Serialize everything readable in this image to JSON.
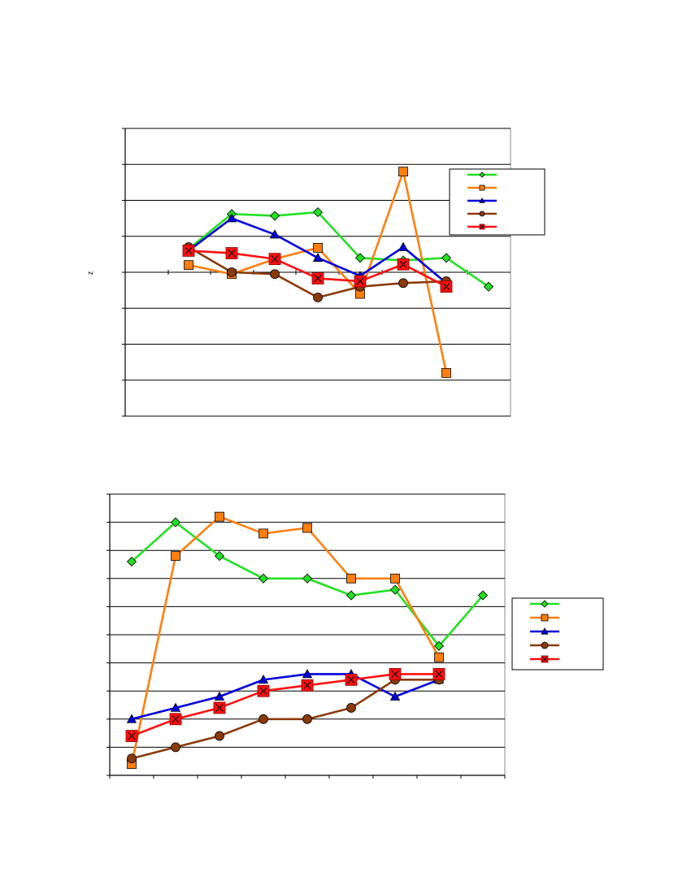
{
  "chart_data": [
    {
      "type": "line",
      "ylabel": "z",
      "ylim": [
        -4,
        4
      ],
      "x": [
        1,
        2,
        3,
        4,
        5,
        6,
        7,
        8,
        9
      ],
      "grid": true,
      "legend_placement": "top-right",
      "series": [
        {
          "marker": "diamond",
          "color": "#22e022",
          "values": [
            null,
            0.65,
            1.62,
            1.57,
            1.67,
            0.4,
            0.33,
            0.4,
            -0.4
          ]
        },
        {
          "marker": "square",
          "color": "#ff7f0e",
          "values": [
            null,
            0.2,
            -0.05,
            0.37,
            0.68,
            -0.6,
            2.8,
            -2.8,
            null
          ]
        },
        {
          "marker": "triangle",
          "color": "#0000dd",
          "values": [
            null,
            0.6,
            1.5,
            1.05,
            0.4,
            -0.1,
            0.7,
            -0.3,
            null
          ]
        },
        {
          "marker": "circle",
          "color": "#8b3a0a",
          "values": [
            null,
            0.7,
            0.0,
            -0.05,
            -0.7,
            -0.4,
            -0.3,
            -0.25,
            null
          ]
        },
        {
          "marker": "x-square",
          "color": "#ff1010",
          "values": [
            null,
            0.6,
            0.53,
            0.37,
            -0.17,
            -0.25,
            0.22,
            -0.4,
            null
          ]
        }
      ]
    },
    {
      "type": "line",
      "ylim": [
        0,
        10
      ],
      "x": [
        1,
        2,
        3,
        4,
        5,
        6,
        7,
        8,
        9
      ],
      "grid": true,
      "legend_placement": "right",
      "series": [
        {
          "marker": "diamond",
          "color": "#22e022",
          "values": [
            7.6,
            9.0,
            7.8,
            7.0,
            7.0,
            6.4,
            6.6,
            4.6,
            6.4
          ]
        },
        {
          "marker": "square",
          "color": "#ff7f0e",
          "values": [
            0.4,
            7.8,
            9.2,
            8.6,
            8.8,
            7.0,
            7.0,
            4.2,
            null
          ]
        },
        {
          "marker": "triangle",
          "color": "#0000dd",
          "values": [
            2.0,
            2.4,
            2.8,
            3.4,
            3.6,
            3.6,
            2.8,
            3.4,
            null
          ]
        },
        {
          "marker": "circle",
          "color": "#8b3a0a",
          "values": [
            0.6,
            1.0,
            1.4,
            2.0,
            2.0,
            2.4,
            3.4,
            3.4,
            null
          ]
        },
        {
          "marker": "x-square",
          "color": "#ff1010",
          "values": [
            1.4,
            2.0,
            2.4,
            3.0,
            3.2,
            3.4,
            3.6,
            3.6,
            null
          ]
        }
      ]
    }
  ]
}
